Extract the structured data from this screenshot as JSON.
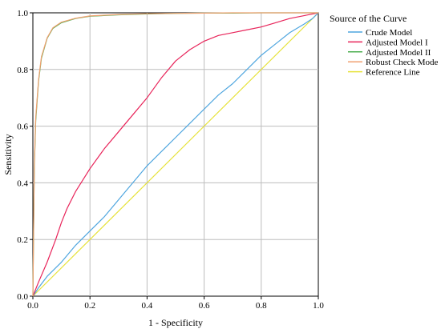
{
  "chart_data": {
    "type": "line",
    "title": "",
    "xlabel": "1 - Specificity",
    "ylabel": "Sensitivity",
    "xlim": [
      0,
      1
    ],
    "ylim": [
      0,
      1
    ],
    "xticks": [
      "0.0",
      "0.2",
      "0.4",
      "0.6",
      "0.8",
      "1.0"
    ],
    "yticks": [
      "0.0",
      "0.2",
      "0.4",
      "0.6",
      "0.8",
      "1.0"
    ],
    "grid": true,
    "legend": {
      "title": "Source of the Curve",
      "placement": "right"
    },
    "series": [
      {
        "name": "Crude Model",
        "color": "#4fa6df",
        "x": [
          0,
          0.02,
          0.05,
          0.1,
          0.15,
          0.2,
          0.25,
          0.3,
          0.35,
          0.4,
          0.45,
          0.5,
          0.55,
          0.6,
          0.65,
          0.7,
          0.75,
          0.8,
          0.85,
          0.9,
          0.95,
          0.98,
          1.0
        ],
        "y": [
          0,
          0.03,
          0.07,
          0.12,
          0.18,
          0.23,
          0.28,
          0.34,
          0.4,
          0.46,
          0.51,
          0.56,
          0.61,
          0.66,
          0.71,
          0.75,
          0.8,
          0.85,
          0.89,
          0.93,
          0.96,
          0.98,
          1.0
        ]
      },
      {
        "name": "Adjusted Model I",
        "color": "#e8245a",
        "x": [
          0,
          0.02,
          0.05,
          0.08,
          0.1,
          0.12,
          0.15,
          0.2,
          0.25,
          0.3,
          0.35,
          0.4,
          0.45,
          0.5,
          0.55,
          0.6,
          0.65,
          0.7,
          0.75,
          0.8,
          0.85,
          0.9,
          0.95,
          1.0
        ],
        "y": [
          0,
          0.05,
          0.12,
          0.2,
          0.26,
          0.31,
          0.37,
          0.45,
          0.52,
          0.58,
          0.64,
          0.7,
          0.77,
          0.83,
          0.87,
          0.9,
          0.92,
          0.93,
          0.94,
          0.95,
          0.965,
          0.98,
          0.99,
          1.0
        ]
      },
      {
        "name": "Adjusted Model II",
        "color": "#4caf50",
        "x": [
          0,
          0.005,
          0.01,
          0.02,
          0.03,
          0.05,
          0.07,
          0.1,
          0.15,
          0.2,
          0.3,
          0.4,
          0.5,
          0.6,
          0.7,
          0.8,
          0.9,
          1.0
        ],
        "y": [
          0,
          0.45,
          0.62,
          0.76,
          0.84,
          0.91,
          0.945,
          0.965,
          0.98,
          0.988,
          0.993,
          0.996,
          0.998,
          0.999,
          0.999,
          1.0,
          1.0,
          1.0
        ]
      },
      {
        "name": "Robust Check Mode",
        "color": "#f0a070",
        "x": [
          0,
          0.005,
          0.01,
          0.02,
          0.03,
          0.05,
          0.07,
          0.1,
          0.15,
          0.2,
          0.3,
          0.4,
          0.5,
          0.6,
          0.7,
          0.8,
          0.9,
          1.0
        ],
        "y": [
          0,
          0.46,
          0.63,
          0.765,
          0.845,
          0.912,
          0.947,
          0.967,
          0.981,
          0.989,
          0.994,
          0.997,
          0.998,
          0.999,
          1.0,
          1.0,
          1.0,
          1.0
        ]
      },
      {
        "name": "Reference Line",
        "color": "#e6e23a",
        "x": [
          0,
          1
        ],
        "y": [
          0,
          1
        ]
      }
    ]
  }
}
